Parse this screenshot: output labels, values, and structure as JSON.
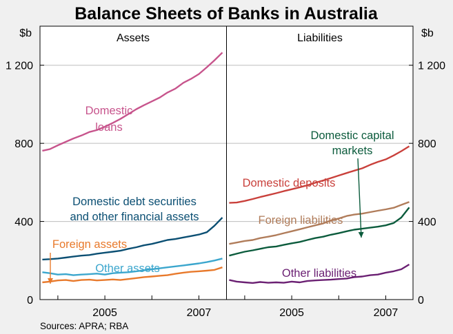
{
  "chart_data": {
    "type": "line",
    "title": "Balance Sheets of Banks in Australia",
    "y_unit_left": "$b",
    "y_unit_right": "$b",
    "ylim": [
      0,
      1400
    ],
    "yticks": [
      {
        "value": 0,
        "label": "0"
      },
      {
        "value": 400,
        "label": "400"
      },
      {
        "value": 800,
        "label": "800"
      },
      {
        "value": 1200,
        "label": "1 200"
      }
    ],
    "xlim": [
      2003.62,
      2007.58
    ],
    "xticks": [
      {
        "value": 2005,
        "label": "2005"
      },
      {
        "value": 2007,
        "label": "2007"
      }
    ],
    "grid": true,
    "source": "Sources: APRA; RBA",
    "panels": [
      {
        "title": "Assets",
        "series": [
          {
            "name": "Domestic loans",
            "label_lines": [
              "Domestic",
              "loans"
            ],
            "color": "#c7548c",
            "x": [
              2003.67,
              2003.83,
              2004.0,
              2004.17,
              2004.33,
              2004.5,
              2004.67,
              2004.83,
              2005.0,
              2005.17,
              2005.33,
              2005.5,
              2005.67,
              2005.83,
              2006.0,
              2006.17,
              2006.33,
              2006.5,
              2006.67,
              2006.83,
              2007.0,
              2007.17,
              2007.33,
              2007.5
            ],
            "y": [
              762,
              770,
              790,
              808,
              825,
              840,
              858,
              868,
              885,
              905,
              925,
              950,
              975,
              995,
              1015,
              1035,
              1060,
              1080,
              1110,
              1130,
              1155,
              1190,
              1225,
              1265
            ]
          },
          {
            "name": "Domestic debt securities and other financial assets",
            "label_lines": [
              "Domestic debt securities",
              "and other financial assets"
            ],
            "color": "#0b4f73",
            "x": [
              2003.67,
              2003.83,
              2004.0,
              2004.17,
              2004.33,
              2004.5,
              2004.67,
              2004.83,
              2005.0,
              2005.17,
              2005.33,
              2005.5,
              2005.67,
              2005.83,
              2006.0,
              2006.17,
              2006.33,
              2006.5,
              2006.67,
              2006.83,
              2007.0,
              2007.17,
              2007.33,
              2007.5
            ],
            "y": [
              205,
              207,
              210,
              215,
              220,
              225,
              228,
              235,
              240,
              245,
              250,
              260,
              268,
              278,
              285,
              295,
              305,
              310,
              318,
              325,
              333,
              345,
              378,
              420
            ]
          },
          {
            "name": "Other assets",
            "label_lines": [
              "Other assets"
            ],
            "color": "#3ba6cd",
            "x": [
              2003.67,
              2003.83,
              2004.0,
              2004.17,
              2004.33,
              2004.5,
              2004.67,
              2004.83,
              2005.0,
              2005.17,
              2005.33,
              2005.5,
              2005.67,
              2005.83,
              2006.0,
              2006.17,
              2006.33,
              2006.5,
              2006.67,
              2006.83,
              2007.0,
              2007.17,
              2007.33,
              2007.5
            ],
            "y": [
              140,
              135,
              128,
              130,
              125,
              128,
              130,
              133,
              128,
              135,
              138,
              140,
              145,
              150,
              155,
              160,
              165,
              170,
              175,
              180,
              185,
              192,
              200,
              210
            ]
          },
          {
            "name": "Foreign assets",
            "label_lines": [
              "Foreign assets"
            ],
            "color": "#e8792b",
            "x": [
              2003.67,
              2003.83,
              2004.0,
              2004.17,
              2004.33,
              2004.5,
              2004.67,
              2004.83,
              2005.0,
              2005.17,
              2005.33,
              2005.5,
              2005.67,
              2005.83,
              2006.0,
              2006.17,
              2006.33,
              2006.5,
              2006.67,
              2006.83,
              2007.0,
              2007.17,
              2007.33,
              2007.5
            ],
            "y": [
              88,
              92,
              98,
              100,
              95,
              100,
              102,
              98,
              100,
              103,
              100,
              105,
              110,
              115,
              118,
              122,
              125,
              132,
              138,
              142,
              145,
              148,
              152,
              165
            ]
          }
        ]
      },
      {
        "title": "Liabilities",
        "series": [
          {
            "name": "Domestic deposits",
            "label_lines": [
              "Domestic deposits"
            ],
            "color": "#c9403b",
            "x": [
              2003.67,
              2003.83,
              2004.0,
              2004.17,
              2004.33,
              2004.5,
              2004.67,
              2004.83,
              2005.0,
              2005.17,
              2005.33,
              2005.5,
              2005.67,
              2005.83,
              2006.0,
              2006.17,
              2006.33,
              2006.5,
              2006.67,
              2006.83,
              2007.0,
              2007.17,
              2007.33,
              2007.5
            ],
            "y": [
              495,
              497,
              505,
              515,
              525,
              535,
              545,
              555,
              565,
              575,
              585,
              598,
              610,
              622,
              635,
              648,
              660,
              672,
              690,
              705,
              718,
              738,
              760,
              785
            ]
          },
          {
            "name": "Foreign liabilities",
            "label_lines": [
              "Foreign liabilities"
            ],
            "color": "#b07c5a",
            "x": [
              2003.67,
              2003.83,
              2004.0,
              2004.17,
              2004.33,
              2004.5,
              2004.67,
              2004.83,
              2005.0,
              2005.17,
              2005.33,
              2005.5,
              2005.67,
              2005.83,
              2006.0,
              2006.17,
              2006.33,
              2006.5,
              2006.67,
              2006.83,
              2007.0,
              2007.17,
              2007.33,
              2007.5
            ],
            "y": [
              285,
              292,
              300,
              305,
              315,
              322,
              330,
              340,
              350,
              360,
              370,
              380,
              390,
              405,
              415,
              428,
              435,
              440,
              448,
              455,
              462,
              470,
              485,
              500
            ]
          },
          {
            "name": "Domestic capital markets",
            "label_lines": [
              "Domestic capital",
              "markets"
            ],
            "color": "#0b5b3c",
            "x": [
              2003.67,
              2003.83,
              2004.0,
              2004.17,
              2004.33,
              2004.5,
              2004.67,
              2004.83,
              2005.0,
              2005.17,
              2005.33,
              2005.5,
              2005.67,
              2005.83,
              2006.0,
              2006.17,
              2006.33,
              2006.5,
              2006.67,
              2006.83,
              2007.0,
              2007.17,
              2007.33,
              2007.5
            ],
            "y": [
              225,
              235,
              245,
              252,
              260,
              268,
              272,
              280,
              288,
              295,
              305,
              315,
              322,
              332,
              340,
              350,
              358,
              363,
              368,
              373,
              380,
              392,
              420,
              472
            ]
          },
          {
            "name": "Other liabilities",
            "label_lines": [
              "Other liabilities"
            ],
            "color": "#6a1f72",
            "x": [
              2003.67,
              2003.83,
              2004.0,
              2004.17,
              2004.33,
              2004.5,
              2004.67,
              2004.83,
              2005.0,
              2005.17,
              2005.33,
              2005.5,
              2005.67,
              2005.83,
              2006.0,
              2006.17,
              2006.33,
              2006.5,
              2006.67,
              2006.83,
              2007.0,
              2007.17,
              2007.33,
              2007.5
            ],
            "y": [
              100,
              92,
              88,
              85,
              90,
              86,
              88,
              86,
              92,
              88,
              95,
              98,
              100,
              102,
              105,
              108,
              115,
              118,
              125,
              128,
              138,
              145,
              155,
              180
            ]
          }
        ]
      }
    ]
  }
}
